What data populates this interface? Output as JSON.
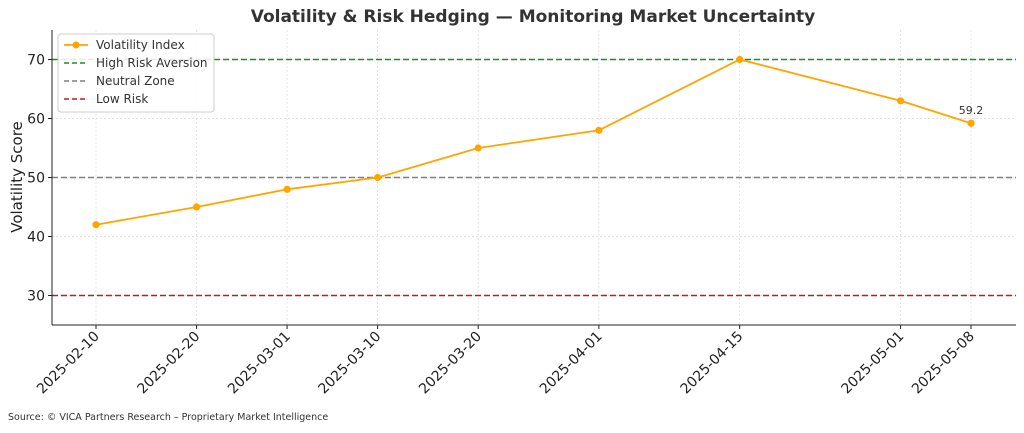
{
  "chart_data": {
    "type": "line",
    "title": "Volatility & Risk Hedging — Monitoring Market Uncertainty",
    "xlabel": "",
    "ylabel": "Volatility Score",
    "ylim": [
      25,
      75
    ],
    "yticks": [
      30,
      40,
      50,
      60,
      70
    ],
    "grid": true,
    "legend_position": "top-left",
    "x": [
      "2025-02-10",
      "2025-02-20",
      "2025-03-01",
      "2025-03-10",
      "2025-03-20",
      "2025-04-01",
      "2025-04-15",
      "2025-05-01",
      "2025-05-08"
    ],
    "series": [
      {
        "name": "Volatility Index",
        "values": [
          42,
          45,
          48,
          50,
          55,
          58,
          70,
          63,
          59.2
        ],
        "color": "#FFA500"
      }
    ],
    "reference_lines": [
      {
        "name": "High Risk Aversion",
        "value": 70,
        "color": "#228B22"
      },
      {
        "name": "Neutral Zone",
        "value": 50,
        "color": "#808080"
      },
      {
        "name": "Low Risk",
        "value": 30,
        "color": "#B22222"
      }
    ],
    "annotations": [
      {
        "x": "2025-05-08",
        "y": 59.2,
        "text": "59.2"
      }
    ]
  },
  "source": "Source: © VICA Partners Research – Proprietary Market Intelligence"
}
